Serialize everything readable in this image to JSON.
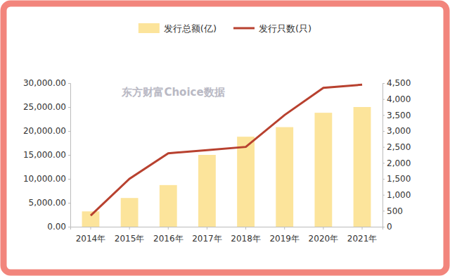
{
  "chart_data": {
    "type": "bar",
    "categories": [
      "2014年",
      "2015年",
      "2016年",
      "2017年",
      "2018年",
      "2019年",
      "2020年",
      "2021年"
    ],
    "series": [
      {
        "name": "发行总额(亿)",
        "type": "bar",
        "color": "#fce49b",
        "values": [
          3200,
          6000,
          8700,
          15000,
          18800,
          20800,
          23800,
          25000
        ]
      },
      {
        "name": "发行只数(只)",
        "type": "line",
        "axis": "y2",
        "color": "#b8412f",
        "values": [
          350,
          1500,
          2300,
          2400,
          2500,
          3500,
          4350,
          4450
        ]
      }
    ],
    "ylim": [
      0,
      30000
    ],
    "yticks": [
      {
        "value": 0,
        "label": "0.00"
      },
      {
        "value": 5000,
        "label": "5,000.00"
      },
      {
        "value": 10000,
        "label": "10,000.00"
      },
      {
        "value": 15000,
        "label": "15,000.00"
      },
      {
        "value": 20000,
        "label": "20,000.00"
      },
      {
        "value": 25000,
        "label": "25,000.00"
      },
      {
        "value": 30000,
        "label": "30,000.00"
      }
    ],
    "y2lim": [
      0,
      4500
    ],
    "y2ticks": [
      0,
      500,
      {
        "value": 1000,
        "label": "1,000"
      },
      {
        "value": 1500,
        "label": "1,500"
      },
      {
        "value": 2000,
        "label": "2,000"
      },
      {
        "value": 2500,
        "label": "2,500"
      },
      {
        "value": 3000,
        "label": "3,000"
      },
      {
        "value": 3500,
        "label": "3,500"
      },
      {
        "value": 4000,
        "label": "4,000"
      },
      {
        "value": 4500,
        "label": "4,500"
      }
    ],
    "annotations": [
      "东方财富Choice数据"
    ],
    "legend": "top",
    "grid": false
  }
}
